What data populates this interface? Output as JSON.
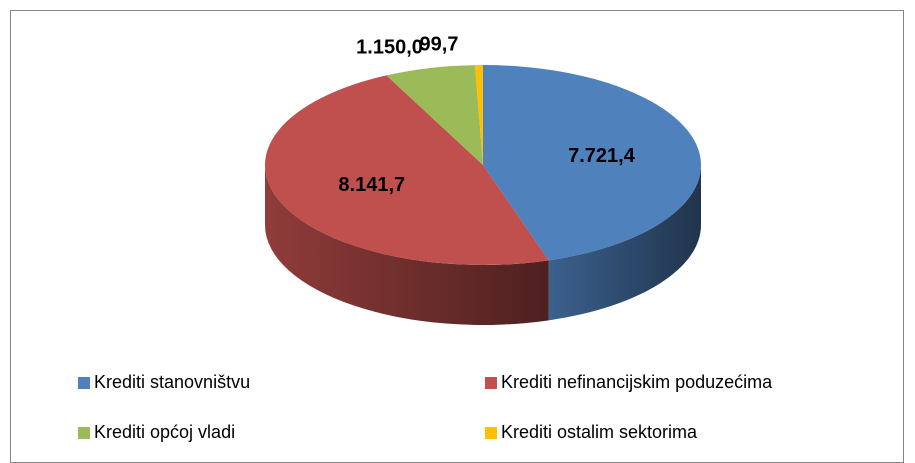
{
  "chart_data": {
    "type": "pie3d",
    "categories": [
      "Krediti stanovništvu",
      "Krediti nefinancijskim poduzećima",
      "Krediti općoj vladi",
      "Krediti ostalim sektorima"
    ],
    "values": [
      7721.4,
      8141.7,
      1150.0,
      99.7
    ],
    "value_labels": [
      "7.721,4",
      "8.141,7",
      "1.150,0",
      "99,7"
    ],
    "colors": [
      "#4f81bd",
      "#c0504d",
      "#9bbb59",
      "#ffc000"
    ],
    "legend": "bottom"
  }
}
